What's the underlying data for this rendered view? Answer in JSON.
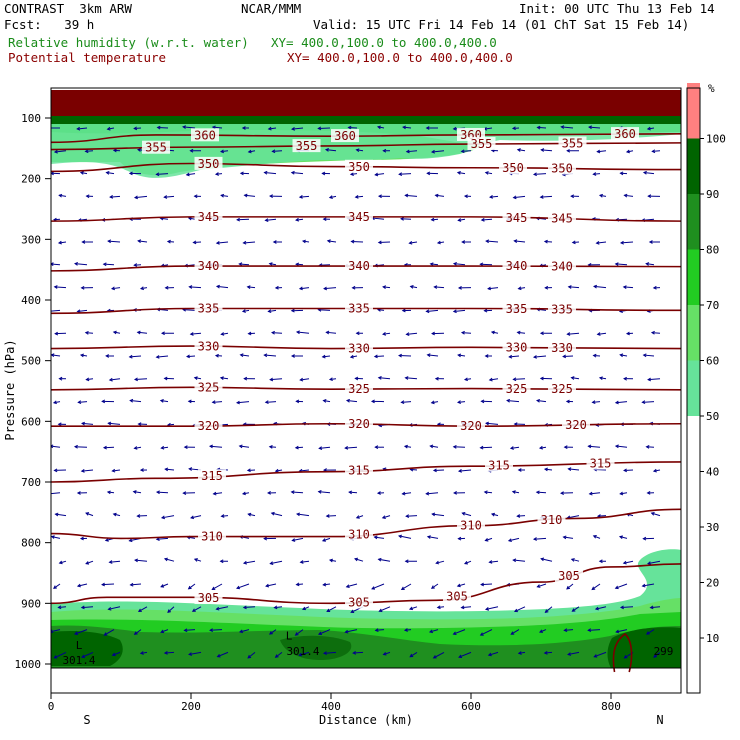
{
  "header": {
    "model": "CONTRAST  3km ARW",
    "center": "NCAR/MMM",
    "init": "Init: 00 UTC Thu 13 Feb 14",
    "fcst": "Fcst:   39 h",
    "valid": "Valid: 15 UTC Fri 14 Feb 14 (01 ChT Sat 15 Feb 14)",
    "field1_name": "Relative humidity (w.r.t. water)",
    "field1_xy": "XY= 400.0,100.0 to 400.0,400.0",
    "field2_name": "Potential temperature",
    "field2_xy": "XY= 400.0,100.0 to 400.0,400.0"
  },
  "colors": {
    "theta_contour": "#7a0000",
    "wind_vectors": "#00008b",
    "rh_100": "#ff8080",
    "rh_90": "#006400",
    "rh_80": "#1f8f1f",
    "rh_70": "#22cc22",
    "rh_60": "#66e066",
    "rh_50": "#66e39a"
  },
  "chart_data": {
    "type": "cross-section",
    "xlabel": "Distance (km)",
    "ylabel": "Pressure (hPa)",
    "x_range": [
      0,
      900
    ],
    "y_range": [
      1050,
      50
    ],
    "x_ticks": [
      "0",
      "200",
      "400",
      "600",
      "800"
    ],
    "y_ticks": [
      "100",
      "200",
      "300",
      "400",
      "500",
      "600",
      "700",
      "800",
      "900",
      "1000"
    ],
    "x_end_labels": {
      "left": "S",
      "right": "N"
    },
    "colorbar": {
      "unit": "%",
      "levels": [
        "10",
        "20",
        "30",
        "40",
        "50",
        "60",
        "70",
        "80",
        "90",
        "100"
      ],
      "fills": [
        {
          "from": 50,
          "to": 60,
          "color": "#66e39a"
        },
        {
          "from": 60,
          "to": 70,
          "color": "#66e066"
        },
        {
          "from": 70,
          "to": 80,
          "color": "#22cc22"
        },
        {
          "from": 80,
          "to": 90,
          "color": "#1f8f1f"
        },
        {
          "from": 90,
          "to": 100,
          "color": "#006400"
        },
        {
          "from": 100,
          "to": 110,
          "color": "#ff8080"
        }
      ]
    },
    "theta_contours": [
      {
        "label": "360",
        "points": [
          [
            0,
            140
          ],
          [
            150,
            128
          ],
          [
            400,
            130
          ],
          [
            600,
            128
          ],
          [
            900,
            126
          ]
        ],
        "labels_at": [
          220,
          420,
          600,
          820
        ]
      },
      {
        "label": "355",
        "points": [
          [
            0,
            152
          ],
          [
            200,
            148
          ],
          [
            400,
            146
          ],
          [
            600,
            143
          ],
          [
            900,
            141
          ]
        ],
        "labels_at": [
          150,
          365,
          615,
          745
        ]
      },
      {
        "label": "350",
        "points": [
          [
            0,
            188
          ],
          [
            200,
            175
          ],
          [
            400,
            180
          ],
          [
            600,
            182
          ],
          [
            900,
            185
          ]
        ],
        "labels_at": [
          225,
          440,
          660,
          730
        ]
      },
      {
        "label": "345",
        "points": [
          [
            0,
            270
          ],
          [
            200,
            263
          ],
          [
            400,
            263
          ],
          [
            600,
            263
          ],
          [
            900,
            270
          ]
        ],
        "labels_at": [
          225,
          440,
          665,
          730
        ]
      },
      {
        "label": "340",
        "points": [
          [
            0,
            352
          ],
          [
            200,
            344
          ],
          [
            400,
            344
          ],
          [
            600,
            344
          ],
          [
            900,
            345
          ]
        ],
        "labels_at": [
          225,
          440,
          665,
          730
        ]
      },
      {
        "label": "335",
        "points": [
          [
            0,
            422
          ],
          [
            200,
            414
          ],
          [
            400,
            414
          ],
          [
            600,
            414
          ],
          [
            900,
            417
          ]
        ],
        "labels_at": [
          225,
          440,
          665,
          730
        ]
      },
      {
        "label": "330",
        "points": [
          [
            0,
            480
          ],
          [
            200,
            476
          ],
          [
            400,
            480
          ],
          [
            600,
            478
          ],
          [
            900,
            480
          ]
        ],
        "labels_at": [
          225,
          440,
          665,
          730
        ]
      },
      {
        "label": "325",
        "points": [
          [
            0,
            548
          ],
          [
            200,
            544
          ],
          [
            400,
            547
          ],
          [
            600,
            546
          ],
          [
            900,
            548
          ]
        ],
        "labels_at": [
          225,
          440,
          665,
          730
        ]
      },
      {
        "label": "320",
        "points": [
          [
            0,
            608
          ],
          [
            200,
            608
          ],
          [
            400,
            604
          ],
          [
            600,
            608
          ],
          [
            900,
            604
          ]
        ],
        "labels_at": [
          225,
          440,
          600,
          750
        ]
      },
      {
        "label": "315",
        "points": [
          [
            0,
            700
          ],
          [
            150,
            694
          ],
          [
            400,
            683
          ],
          [
            600,
            674
          ],
          [
            900,
            667
          ]
        ],
        "labels_at": [
          230,
          440,
          640,
          785
        ]
      },
      {
        "label": "310",
        "points": [
          [
            0,
            785
          ],
          [
            100,
            793
          ],
          [
            200,
            790
          ],
          [
            400,
            790
          ],
          [
            600,
            772
          ],
          [
            750,
            760
          ],
          [
            900,
            745
          ]
        ],
        "labels_at": [
          230,
          440,
          600,
          715
        ]
      },
      {
        "label": "305",
        "points": [
          [
            0,
            900
          ],
          [
            80,
            890
          ],
          [
            200,
            890
          ],
          [
            400,
            900
          ],
          [
            550,
            895
          ],
          [
            700,
            865
          ],
          [
            800,
            840
          ],
          [
            900,
            835
          ]
        ],
        "labels_at": [
          225,
          440,
          580,
          740
        ]
      }
    ],
    "labels": [
      {
        "text": "301.4",
        "x": 40,
        "y": 1000
      },
      {
        "text": "301.4",
        "x": 360,
        "y": 985
      },
      {
        "text": "L",
        "x": 40,
        "y": 975
      },
      {
        "text": "L",
        "x": 340,
        "y": 960
      },
      {
        "text": "299",
        "x": 875,
        "y": 985
      }
    ]
  }
}
